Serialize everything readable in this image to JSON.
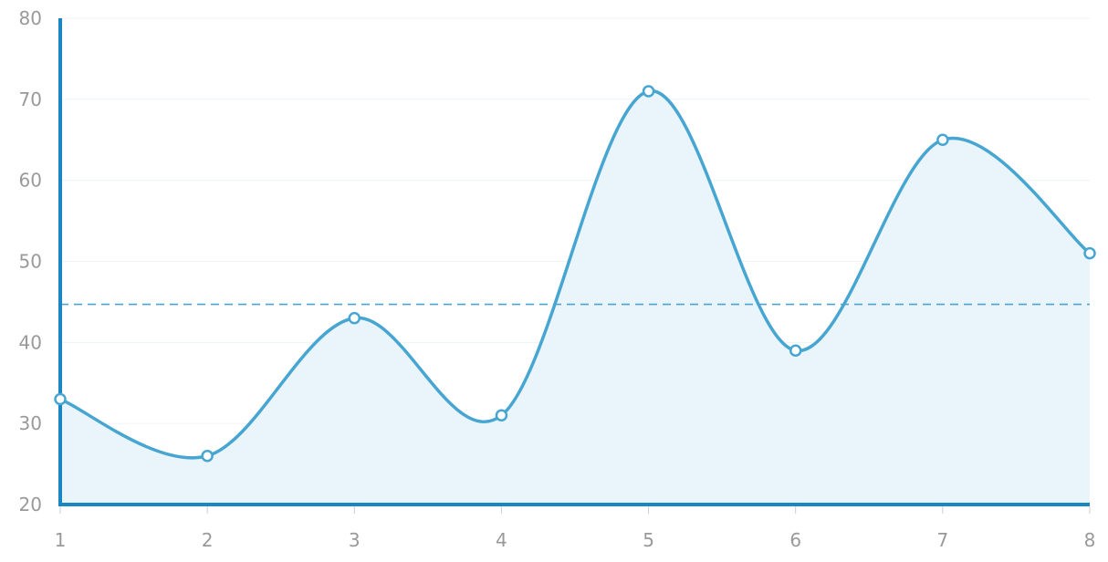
{
  "chart_data": {
    "type": "area",
    "x": [
      1,
      2,
      3,
      4,
      5,
      6,
      7,
      8
    ],
    "series": [
      {
        "values": [
          33,
          26,
          43,
          31,
          71,
          39,
          65,
          51
        ]
      }
    ],
    "reference_line": {
      "value": 44.7,
      "style": "dashed"
    },
    "xlim": [
      1,
      8
    ],
    "ylim": [
      20,
      80
    ],
    "y_ticks": [
      20,
      30,
      40,
      50,
      60,
      70,
      80
    ],
    "x_ticks": [
      1,
      2,
      3,
      4,
      5,
      6,
      7,
      8
    ],
    "grid": true,
    "smooth": true,
    "markers": "hollow-circle",
    "colors": {
      "line": "#47a6d1",
      "fill": "#eaf4fb",
      "axis": "#1a86c3",
      "reference": "#4aa3d1",
      "grid": "#eef2f5",
      "tick_text": "#999999"
    },
    "title": "",
    "xlabel": "",
    "ylabel": ""
  }
}
